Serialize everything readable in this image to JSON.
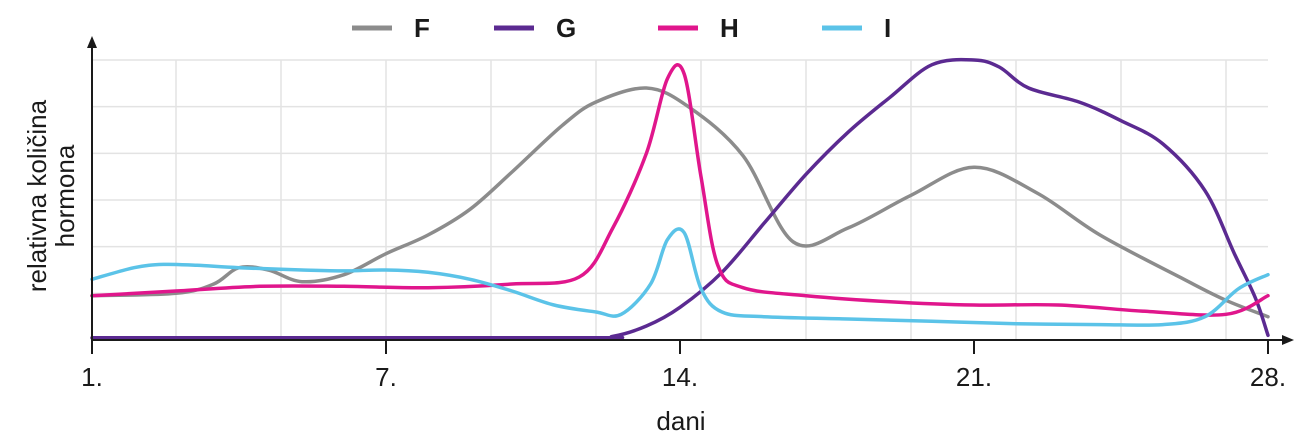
{
  "chart_data": {
    "type": "line",
    "title": "",
    "xlabel": "dani",
    "ylabel_lines": [
      "relativna količina",
      "hormona"
    ],
    "x_ticks": [
      "1.",
      "7.",
      "14.",
      "21.",
      "28."
    ],
    "x_tick_values": [
      1,
      8,
      15,
      22,
      29
    ],
    "xlim": [
      1,
      29
    ],
    "ylim": [
      0,
      6
    ],
    "grid": true,
    "legend_position": "top",
    "series": [
      {
        "name": "F",
        "color": "#8c8c8c",
        "points": [
          [
            1,
            0.95
          ],
          [
            3,
            1.0
          ],
          [
            3.9,
            1.2
          ],
          [
            4.5,
            1.55
          ],
          [
            5.2,
            1.5
          ],
          [
            6,
            1.25
          ],
          [
            7,
            1.4
          ],
          [
            8,
            1.85
          ],
          [
            9,
            2.25
          ],
          [
            10,
            2.8
          ],
          [
            11,
            3.6
          ],
          [
            12.2,
            4.6
          ],
          [
            13,
            5.1
          ],
          [
            14.2,
            5.4
          ],
          [
            15.2,
            5.0
          ],
          [
            16.5,
            3.95
          ],
          [
            17.7,
            2.1
          ],
          [
            19,
            2.4
          ],
          [
            20.5,
            3.1
          ],
          [
            22,
            3.7
          ],
          [
            23.5,
            3.15
          ],
          [
            25,
            2.25
          ],
          [
            27,
            1.3
          ],
          [
            28,
            0.85
          ],
          [
            29,
            0.5
          ]
        ]
      },
      {
        "name": "G",
        "color": "#5b2a91",
        "points": [
          [
            1,
            0.05
          ],
          [
            12.5,
            0.05
          ],
          [
            13.4,
            0.08
          ],
          [
            14.2,
            0.3
          ],
          [
            15,
            0.7
          ],
          [
            16,
            1.45
          ],
          [
            17,
            2.5
          ],
          [
            18,
            3.55
          ],
          [
            19,
            4.45
          ],
          [
            20,
            5.2
          ],
          [
            21,
            5.9
          ],
          [
            22,
            6.0
          ],
          [
            22.6,
            5.85
          ],
          [
            23.3,
            5.4
          ],
          [
            24.5,
            5.1
          ],
          [
            25.5,
            4.7
          ],
          [
            26.5,
            4.2
          ],
          [
            27.5,
            3.2
          ],
          [
            28.2,
            1.85
          ],
          [
            28.7,
            0.9
          ],
          [
            29,
            0.1
          ]
        ]
      },
      {
        "name": "H",
        "color": "#e0168c",
        "points": [
          [
            1,
            0.95
          ],
          [
            3,
            1.05
          ],
          [
            5,
            1.15
          ],
          [
            7,
            1.15
          ],
          [
            9,
            1.12
          ],
          [
            11,
            1.2
          ],
          [
            12.6,
            1.35
          ],
          [
            13.4,
            2.4
          ],
          [
            14.2,
            4.0
          ],
          [
            14.7,
            5.6
          ],
          [
            15.1,
            5.7
          ],
          [
            15.5,
            3.5
          ],
          [
            15.9,
            1.6
          ],
          [
            16.5,
            1.12
          ],
          [
            18,
            0.95
          ],
          [
            20,
            0.82
          ],
          [
            22,
            0.75
          ],
          [
            24,
            0.75
          ],
          [
            26,
            0.62
          ],
          [
            28,
            0.55
          ],
          [
            29,
            0.95
          ]
        ]
      },
      {
        "name": "I",
        "color": "#5bc3e8",
        "points": [
          [
            1,
            1.3
          ],
          [
            2,
            1.55
          ],
          [
            2.7,
            1.62
          ],
          [
            3.5,
            1.6
          ],
          [
            4.5,
            1.55
          ],
          [
            6,
            1.5
          ],
          [
            7,
            1.48
          ],
          [
            8,
            1.5
          ],
          [
            9,
            1.45
          ],
          [
            10,
            1.3
          ],
          [
            11,
            1.05
          ],
          [
            12,
            0.75
          ],
          [
            13,
            0.6
          ],
          [
            13.6,
            0.55
          ],
          [
            14.3,
            1.2
          ],
          [
            14.7,
            2.15
          ],
          [
            15.1,
            2.3
          ],
          [
            15.5,
            1.1
          ],
          [
            16,
            0.6
          ],
          [
            17,
            0.5
          ],
          [
            19,
            0.45
          ],
          [
            21,
            0.4
          ],
          [
            23,
            0.35
          ],
          [
            25,
            0.33
          ],
          [
            26.5,
            0.33
          ],
          [
            27.5,
            0.5
          ],
          [
            28.3,
            1.1
          ],
          [
            29,
            1.4
          ]
        ]
      }
    ]
  }
}
